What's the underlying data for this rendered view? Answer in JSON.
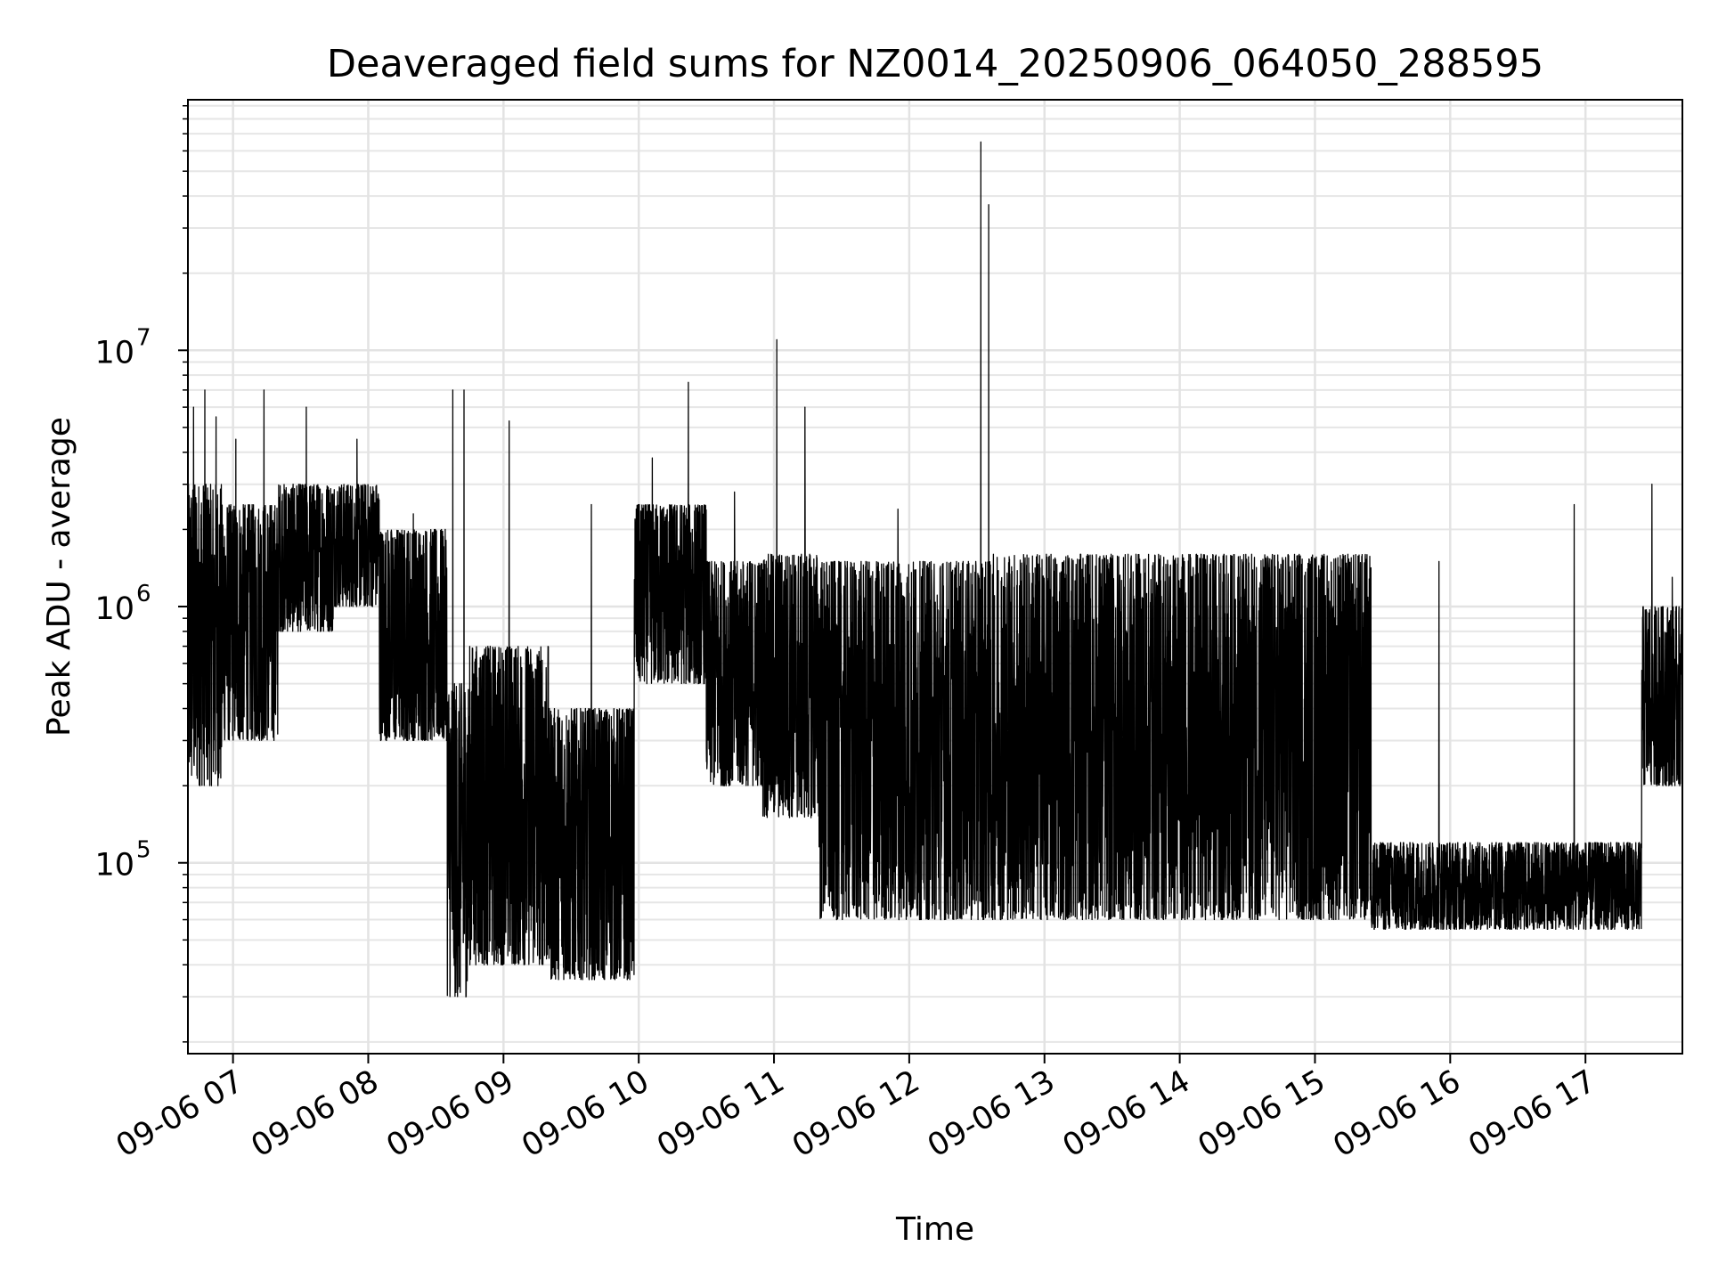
{
  "chart_data": {
    "type": "line",
    "title": "Deaveraged field sums for NZ0014_20250906_064050_288595",
    "xlabel": "Time",
    "ylabel": "Peak ADU - average",
    "y_scale": "log",
    "ylim": [
      18000,
      95000000
    ],
    "xlim": [
      "2025-09-06 06:40",
      "2025-09-06 17:43"
    ],
    "grid": {
      "major": true,
      "minor_y": true
    },
    "line_color": "#000000",
    "x_tick_labels": [
      "09-06 07",
      "09-06 08",
      "09-06 09",
      "09-06 10",
      "09-06 11",
      "09-06 12",
      "09-06 13",
      "09-06 14",
      "09-06 15",
      "09-06 16",
      "09-06 17"
    ],
    "x_tick_times": [
      "2025-09-06 07:00",
      "2025-09-06 08:00",
      "2025-09-06 09:00",
      "2025-09-06 10:00",
      "2025-09-06 11:00",
      "2025-09-06 12:00",
      "2025-09-06 13:00",
      "2025-09-06 14:00",
      "2025-09-06 15:00",
      "2025-09-06 16:00",
      "2025-09-06 17:00"
    ],
    "y_ticks": [
      {
        "value": 100000,
        "base": "10",
        "exp": "5"
      },
      {
        "value": 1000000,
        "base": "10",
        "exp": "6"
      },
      {
        "value": 10000000,
        "base": "10",
        "exp": "7"
      }
    ],
    "series": [
      {
        "segments": [
          {
            "start": "2025-09-06 06:40",
            "end": "2025-09-06 06:55",
            "low": 200000,
            "high": 3000000,
            "peaks": [
              6000000,
              7000000,
              5500000
            ]
          },
          {
            "start": "2025-09-06 06:55",
            "end": "2025-09-06 07:20",
            "low": 300000,
            "high": 2500000,
            "peaks": [
              4500000,
              7000000
            ]
          },
          {
            "start": "2025-09-06 07:20",
            "end": "2025-09-06 07:45",
            "low": 800000,
            "high": 3000000,
            "peaks": [
              6000000
            ]
          },
          {
            "start": "2025-09-06 07:45",
            "end": "2025-09-06 08:05",
            "low": 1000000,
            "high": 3000000,
            "peaks": [
              4500000
            ]
          },
          {
            "start": "2025-09-06 08:05",
            "end": "2025-09-06 08:35",
            "low": 300000,
            "high": 2000000,
            "peaks": [
              2300000
            ]
          },
          {
            "start": "2025-09-06 08:35",
            "end": "2025-09-06 08:45",
            "low": 30000,
            "high": 500000,
            "peaks": [
              7000000,
              7000000
            ]
          },
          {
            "start": "2025-09-06 08:45",
            "end": "2025-09-06 09:20",
            "low": 40000,
            "high": 700000,
            "peaks": [
              5300000
            ]
          },
          {
            "start": "2025-09-06 09:20",
            "end": "2025-09-06 09:58",
            "low": 35000,
            "high": 400000,
            "peaks": [
              2500000
            ]
          },
          {
            "start": "2025-09-06 09:58",
            "end": "2025-09-06 10:30",
            "low": 500000,
            "high": 2500000,
            "peaks": [
              3800000,
              7500000
            ]
          },
          {
            "start": "2025-09-06 10:30",
            "end": "2025-09-06 10:55",
            "low": 200000,
            "high": 1500000,
            "peaks": [
              2800000
            ]
          },
          {
            "start": "2025-09-06 10:55",
            "end": "2025-09-06 11:20",
            "low": 150000,
            "high": 1600000,
            "peaks": [
              11000000,
              6000000
            ]
          },
          {
            "start": "2025-09-06 11:20",
            "end": "2025-09-06 12:30",
            "low": 60000,
            "high": 1500000,
            "peaks": [
              2400000
            ]
          },
          {
            "start": "2025-09-06 12:30",
            "end": "2025-09-06 12:37",
            "low": 60000,
            "high": 1500000,
            "peaks": [
              65000000,
              37000000
            ]
          },
          {
            "start": "2025-09-06 12:37",
            "end": "2025-09-06 15:25",
            "low": 60000,
            "high": 1600000,
            "peaks": []
          },
          {
            "start": "2025-09-06 15:25",
            "end": "2025-09-06 17:25",
            "low": 55000,
            "high": 120000,
            "peaks": [
              1500000,
              2500000
            ]
          },
          {
            "start": "2025-09-06 17:25",
            "end": "2025-09-06 17:43",
            "low": 200000,
            "high": 1000000,
            "peaks": [
              3000000,
              1300000
            ]
          }
        ]
      }
    ]
  }
}
